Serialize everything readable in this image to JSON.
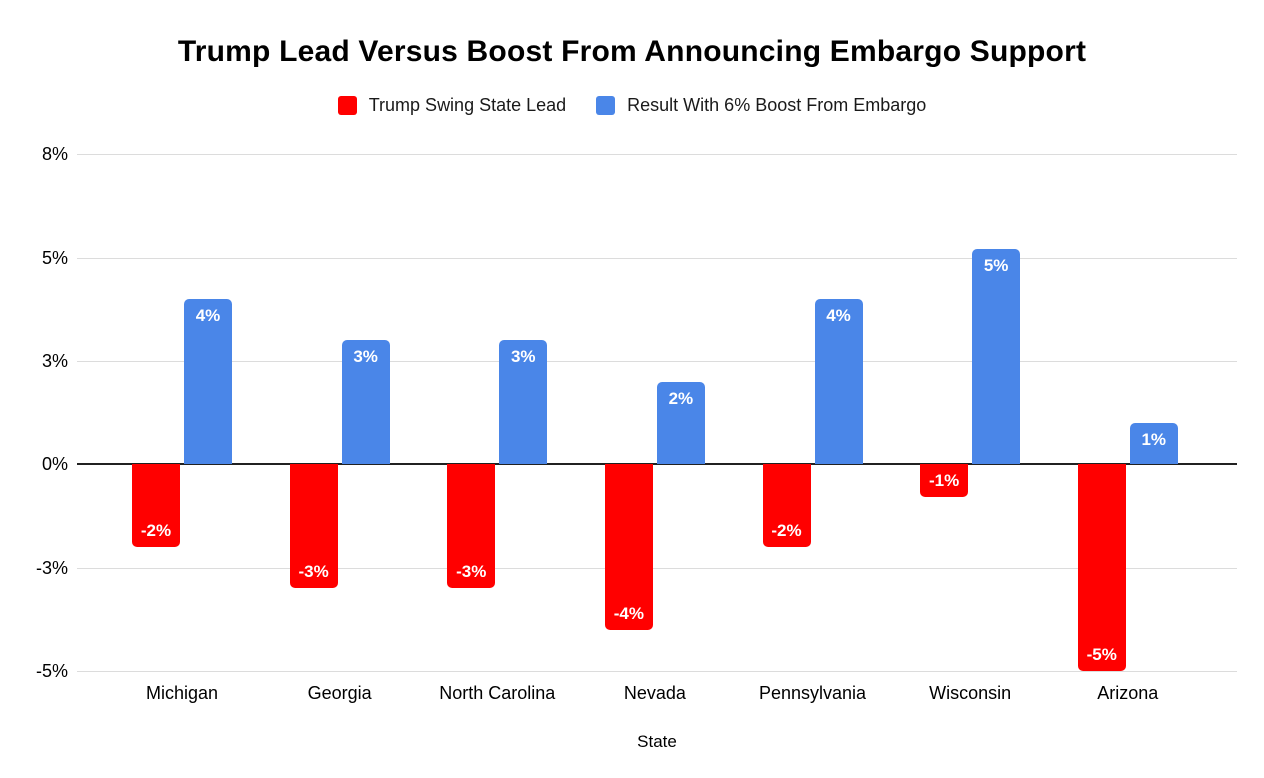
{
  "chart_data": {
    "type": "bar",
    "title": "Trump Lead Versus Boost From Announcing Embargo Support",
    "xlabel": "State",
    "ylabel": "",
    "categories": [
      "Michigan",
      "Georgia",
      "North Carolina",
      "Nevada",
      "Pennsylvania",
      "Wisconsin",
      "Arizona"
    ],
    "series": [
      {
        "name": "Trump Swing State Lead",
        "color": "#ff0000",
        "values": [
          -2,
          -3,
          -3,
          -4,
          -2,
          -0.8,
          -5
        ],
        "data_labels": [
          "-2%",
          "-3%",
          "-3%",
          "-4%",
          "-2%",
          "-1%",
          "-5%"
        ]
      },
      {
        "name": "Result With 6% Boost From Embargo",
        "color": "#4a86e8",
        "values": [
          4,
          3,
          3,
          2,
          4,
          5.2,
          1
        ],
        "data_labels": [
          "4%",
          "3%",
          "3%",
          "2%",
          "4%",
          "5%",
          "1%"
        ]
      }
    ],
    "yticks": [
      {
        "value": 7.5,
        "label": "8%"
      },
      {
        "value": 5,
        "label": "5%"
      },
      {
        "value": 2.5,
        "label": "3%"
      },
      {
        "value": 0,
        "label": "0%"
      },
      {
        "value": -2.5,
        "label": "-3%"
      },
      {
        "value": -5,
        "label": "-5%"
      }
    ],
    "ylim": [
      -5,
      7.5
    ],
    "grid": true,
    "legend_position": "top",
    "colors": {
      "grid": "#dcdcdc",
      "zero_line": "#212121",
      "bar_label_text": "#ffffff",
      "axis_text": "#000000"
    }
  }
}
